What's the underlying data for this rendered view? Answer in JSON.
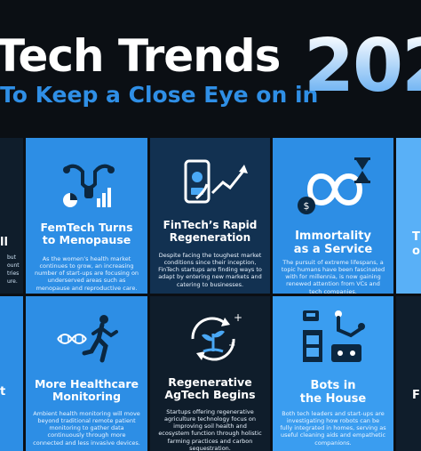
{
  "header": {
    "title": "Tech Trends",
    "subtitle": "To Keep a Close Eye on in",
    "year": "202"
  },
  "cards": [
    {
      "title_line1": "FemTech Turns",
      "title_line2": "to Menopause",
      "body": "As the women’s health market continues to grow, an increasing number of start-ups are focusing on underserved areas such as menopause and reproductive care."
    },
    {
      "title_line1": "FinTech’s Rapid",
      "title_line2": "Regeneration",
      "body": "Despite facing the toughest market conditions since their inception, FinTech startups are finding ways to adapt by entering new markets and catering to businesses."
    },
    {
      "title_line1": "Immortality",
      "title_line2": "as a Service",
      "body": "The pursuit of extreme lifespans, a topic humans have been fascinated with for millennia, is now gaining renewed attention from VCs and tech companies."
    },
    {
      "title_line1": "More Healthcare",
      "title_line2": "Monitoring",
      "body": "Ambient health monitoring will move beyond traditional remote patient monitoring to gather data continuously through more connected and less invasive devices."
    },
    {
      "title_line1": "Regenerative",
      "title_line2": "AgTech Begins",
      "body": "Startups offering regenerative agriculture technology focus on improving soil health and ecosystem function through holistic farming practices and carbon sequestration."
    },
    {
      "title_line1": "Bots in",
      "title_line2": "the House",
      "body": "Both tech leaders and start-ups are investigating how robots can be fully integrated in homes, serving as useful cleaning aids and empathetic companions."
    }
  ],
  "edge": {
    "left_top_fragment": "ll",
    "left_top_lines": [
      "but",
      "ount",
      "tries",
      "ure."
    ],
    "left_bottom_fragment": "t",
    "right_top_fragment": "T",
    "right_top_fragment2": "o",
    "right_bottom_fragment": "F"
  },
  "colors": {
    "background": "#0b0f14",
    "accent_blue": "#2f8fe6",
    "card_dark": "#0f1d2b",
    "card_blue": "#2d8ee5"
  }
}
